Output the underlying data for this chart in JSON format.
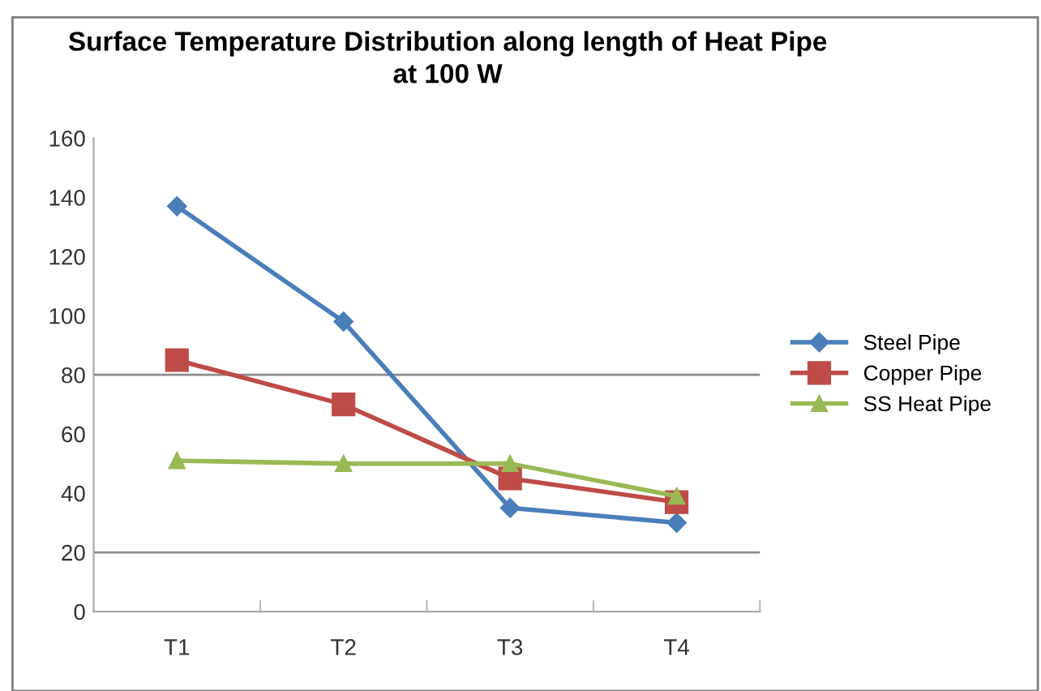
{
  "chart_data": {
    "type": "line",
    "title": "Surface Temperature Distribution along length of Heat Pipe\nat 100 W",
    "categories": [
      "T1",
      "T2",
      "T3",
      "T4"
    ],
    "series": [
      {
        "name": "Steel Pipe",
        "color": "#4a7ebb",
        "marker": "diamond",
        "values": [
          137,
          98,
          35,
          30
        ]
      },
      {
        "name": "Copper Pipe",
        "color": "#be4b48",
        "marker": "square",
        "values": [
          85,
          70,
          45,
          37
        ]
      },
      {
        "name": "SS Heat Pipe",
        "color": "#98b954",
        "marker": "triangle",
        "values": [
          51,
          50,
          50,
          39
        ]
      }
    ],
    "ylim": [
      0,
      160
    ],
    "yticks": [
      0,
      20,
      40,
      60,
      80,
      100,
      120,
      140,
      160
    ],
    "ref_lines": [
      {
        "axis": "y",
        "value": 80,
        "color": "#8c8c8c"
      },
      {
        "axis": "y",
        "value": 20,
        "color": "#8c8c8c"
      }
    ],
    "legend": "right",
    "line_style": "solid"
  }
}
